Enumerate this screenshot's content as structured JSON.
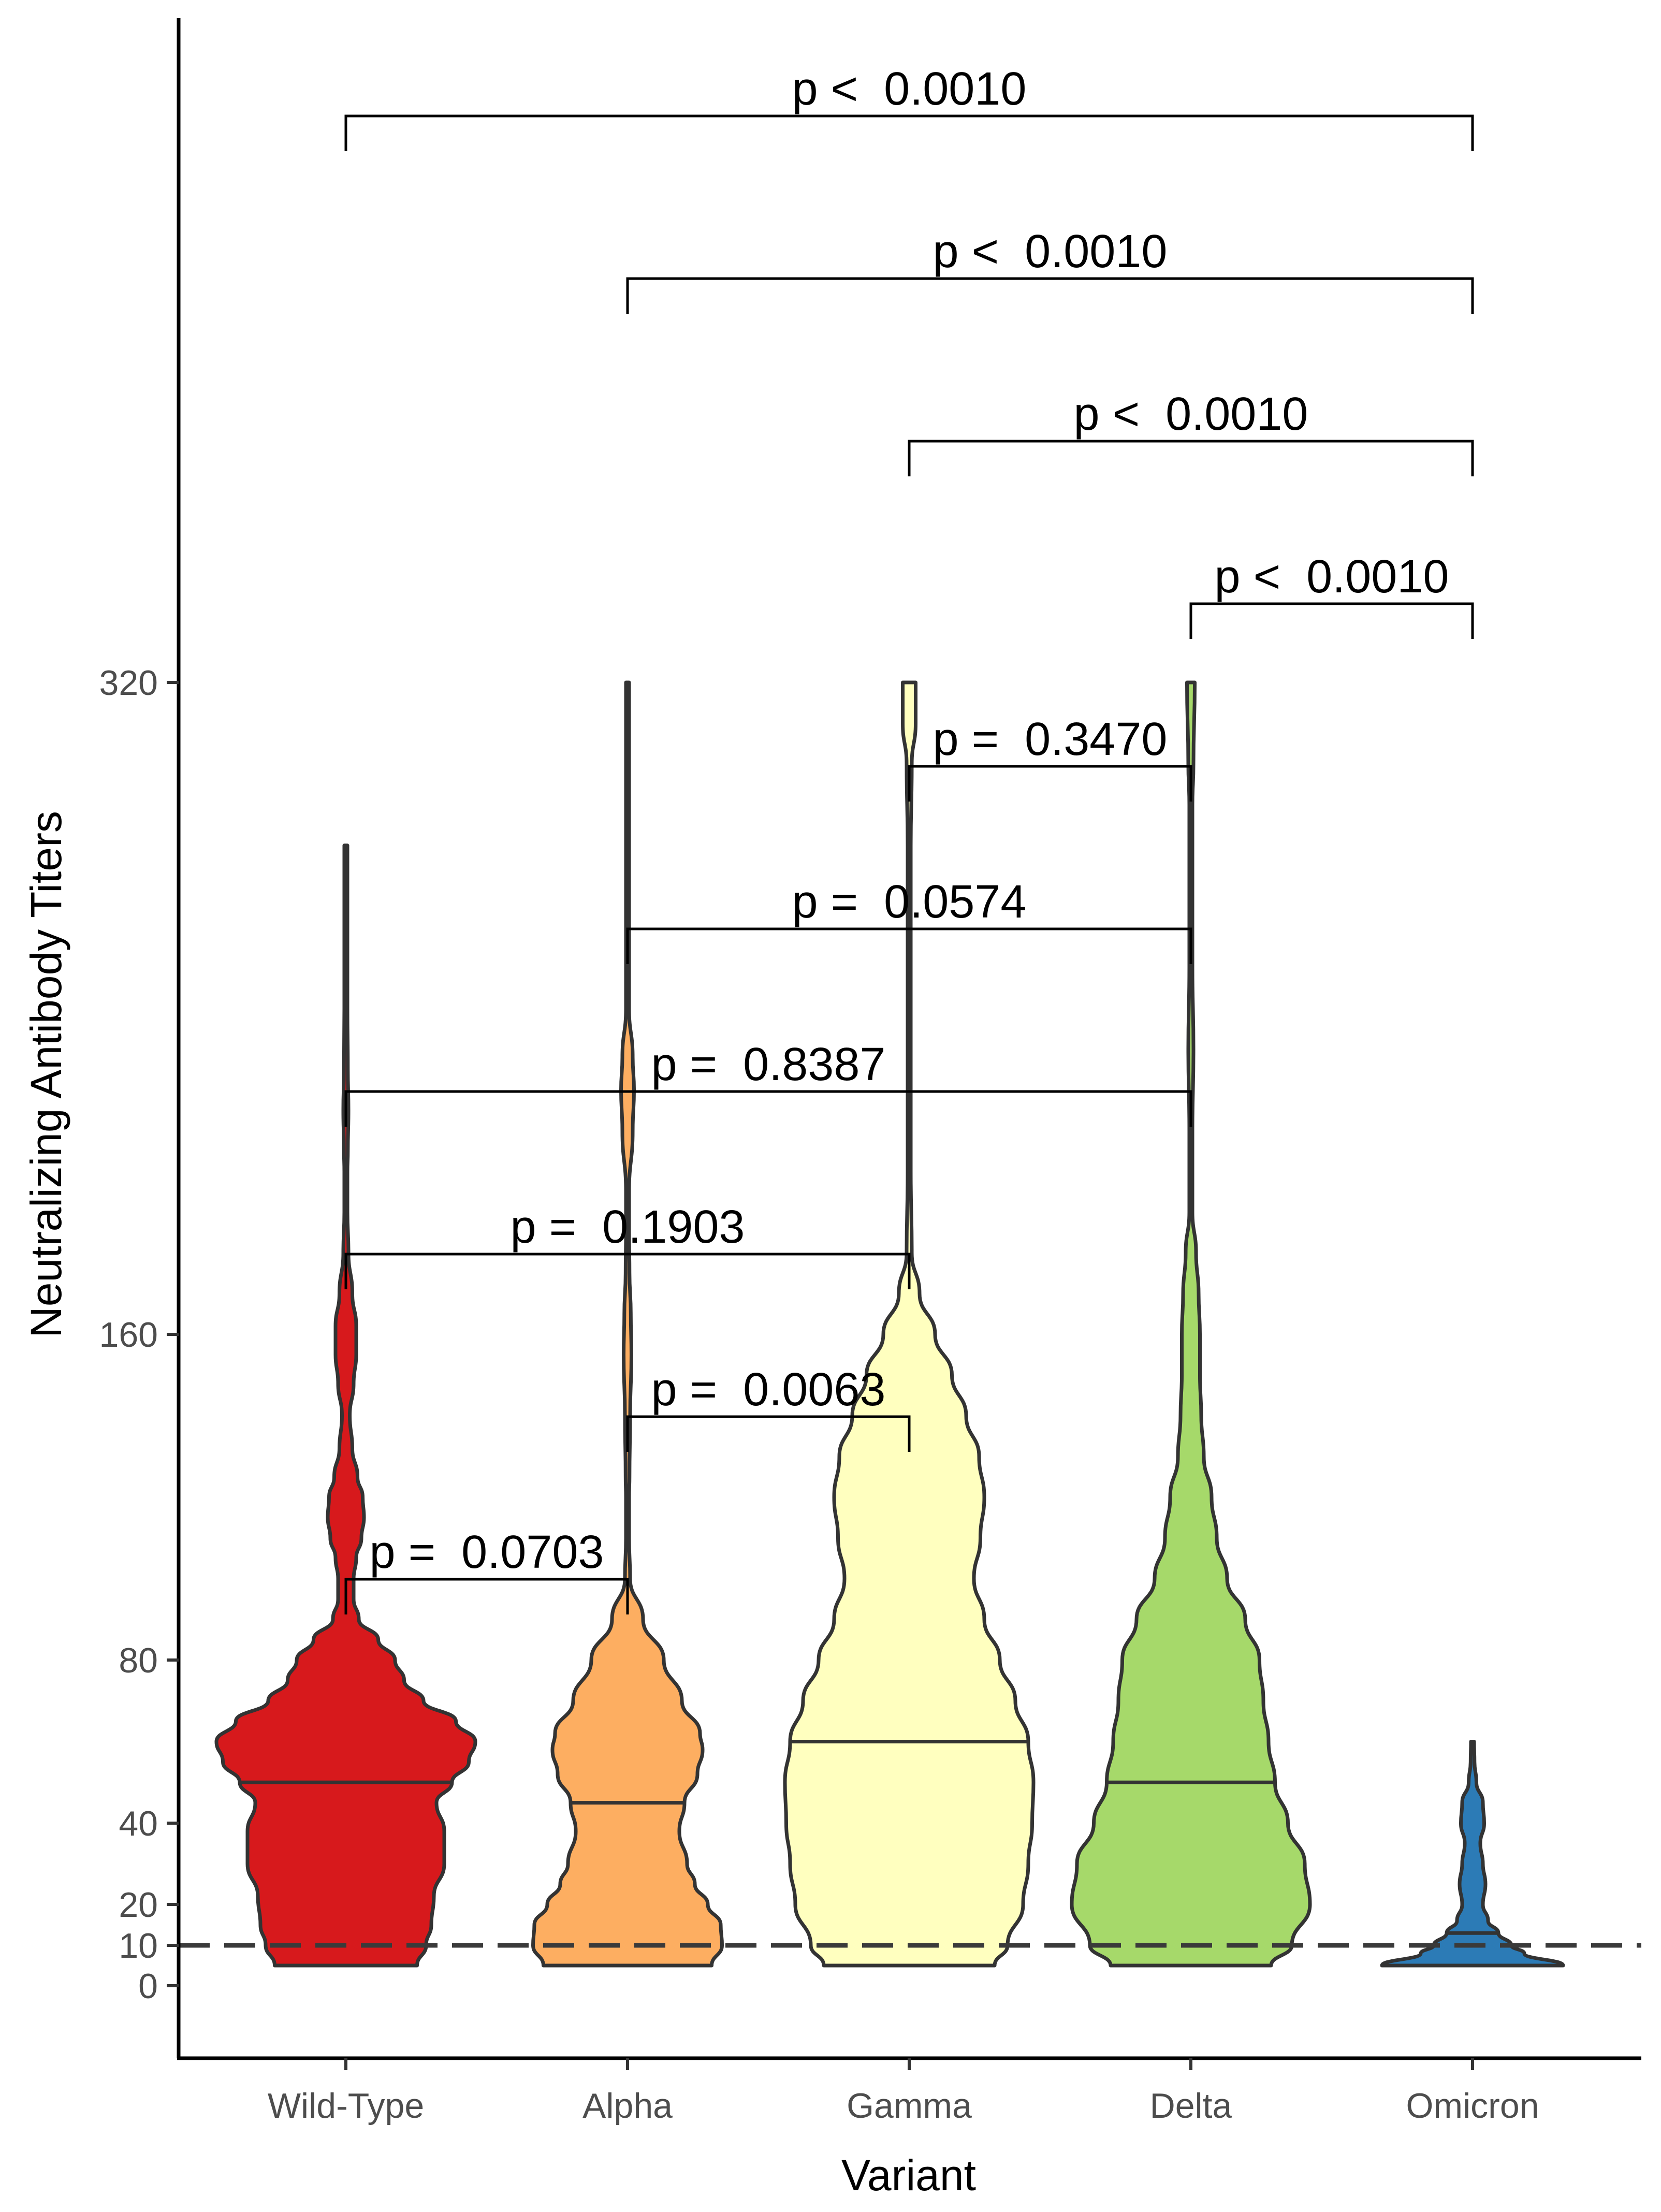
{
  "chart_data": {
    "type": "violin",
    "xlabel": "Variant",
    "ylabel": "Neutralizing Antibody Titers",
    "categories": [
      "Wild-Type",
      "Alpha",
      "Gamma",
      "Delta",
      "Omicron"
    ],
    "y_ticks": [
      0,
      10,
      20,
      40,
      80,
      160,
      320
    ],
    "y_tick_labels": [
      "0",
      "10",
      "20",
      "40",
      "80",
      "160",
      "320"
    ],
    "y_scale": "piecewise",
    "threshold_line": {
      "value": 10,
      "style": "dashed"
    },
    "colors": [
      "#d7191c",
      "#fdae61",
      "#ffffbf",
      "#a6d96a",
      "#2c7bb6"
    ],
    "series": [
      {
        "category": "Wild-Type",
        "median": 50,
        "min": 5,
        "max": 280,
        "profile": [
          [
            5,
            0.55
          ],
          [
            10,
            0.62
          ],
          [
            15,
            0.66
          ],
          [
            22,
            0.68
          ],
          [
            30,
            0.76
          ],
          [
            38,
            0.76
          ],
          [
            45,
            0.7
          ],
          [
            50,
            0.82
          ],
          [
            55,
            0.95
          ],
          [
            60,
            1.0
          ],
          [
            65,
            0.85
          ],
          [
            70,
            0.6
          ],
          [
            75,
            0.45
          ],
          [
            80,
            0.38
          ],
          [
            85,
            0.25
          ],
          [
            90,
            0.1
          ],
          [
            95,
            0.06
          ],
          [
            100,
            0.06
          ],
          [
            105,
            0.08
          ],
          [
            110,
            0.12
          ],
          [
            115,
            0.14
          ],
          [
            120,
            0.13
          ],
          [
            125,
            0.09
          ],
          [
            132,
            0.05
          ],
          [
            140,
            0.03
          ],
          [
            148,
            0.06
          ],
          [
            155,
            0.08
          ],
          [
            162,
            0.08
          ],
          [
            170,
            0.05
          ],
          [
            180,
            0.02
          ],
          [
            190,
            0.01
          ],
          [
            200,
            0.01
          ],
          [
            205,
            0.015
          ],
          [
            215,
            0.02
          ],
          [
            225,
            0.015
          ],
          [
            240,
            0.01
          ],
          [
            260,
            0.01
          ],
          [
            280,
            0.01
          ]
        ]
      },
      {
        "category": "Alpha",
        "median": 45,
        "min": 5,
        "max": 320,
        "profile": [
          [
            5,
            0.65
          ],
          [
            10,
            0.73
          ],
          [
            15,
            0.72
          ],
          [
            20,
            0.62
          ],
          [
            25,
            0.52
          ],
          [
            30,
            0.46
          ],
          [
            38,
            0.4
          ],
          [
            45,
            0.44
          ],
          [
            52,
            0.54
          ],
          [
            58,
            0.58
          ],
          [
            62,
            0.56
          ],
          [
            70,
            0.42
          ],
          [
            80,
            0.28
          ],
          [
            90,
            0.12
          ],
          [
            100,
            0.02
          ],
          [
            110,
            0.01
          ],
          [
            120,
            0.01
          ],
          [
            125,
            0.015
          ],
          [
            140,
            0.02
          ],
          [
            155,
            0.03
          ],
          [
            165,
            0.025
          ],
          [
            175,
            0.015
          ],
          [
            185,
            0.01
          ],
          [
            195,
            0.01
          ],
          [
            210,
            0.04
          ],
          [
            220,
            0.05
          ],
          [
            228,
            0.04
          ],
          [
            240,
            0.01
          ],
          [
            260,
            0.005
          ],
          [
            280,
            0.005
          ],
          [
            300,
            0.005
          ],
          [
            320,
            0.01
          ]
        ]
      },
      {
        "category": "Gamma",
        "median": 60,
        "min": 5,
        "max": 320,
        "profile": [
          [
            5,
            0.66
          ],
          [
            10,
            0.76
          ],
          [
            20,
            0.88
          ],
          [
            30,
            0.92
          ],
          [
            40,
            0.95
          ],
          [
            50,
            0.96
          ],
          [
            60,
            0.92
          ],
          [
            70,
            0.82
          ],
          [
            80,
            0.7
          ],
          [
            90,
            0.58
          ],
          [
            100,
            0.5
          ],
          [
            110,
            0.55
          ],
          [
            120,
            0.58
          ],
          [
            130,
            0.54
          ],
          [
            140,
            0.44
          ],
          [
            150,
            0.33
          ],
          [
            160,
            0.2
          ],
          [
            170,
            0.08
          ],
          [
            180,
            0.02
          ],
          [
            200,
            0.01
          ],
          [
            240,
            0.01
          ],
          [
            280,
            0.01
          ],
          [
            300,
            0.02
          ],
          [
            310,
            0.05
          ],
          [
            320,
            0.05
          ]
        ]
      },
      {
        "category": "Delta",
        "median": 50,
        "min": 5,
        "max": 320,
        "profile": [
          [
            5,
            0.62
          ],
          [
            10,
            0.78
          ],
          [
            20,
            0.92
          ],
          [
            30,
            0.88
          ],
          [
            40,
            0.75
          ],
          [
            50,
            0.65
          ],
          [
            60,
            0.6
          ],
          [
            70,
            0.56
          ],
          [
            80,
            0.53
          ],
          [
            90,
            0.42
          ],
          [
            100,
            0.28
          ],
          [
            110,
            0.2
          ],
          [
            120,
            0.16
          ],
          [
            130,
            0.1
          ],
          [
            140,
            0.08
          ],
          [
            150,
            0.07
          ],
          [
            160,
            0.07
          ],
          [
            170,
            0.06
          ],
          [
            180,
            0.04
          ],
          [
            190,
            0.01
          ],
          [
            210,
            0.01
          ],
          [
            230,
            0.02
          ],
          [
            250,
            0.01
          ],
          [
            270,
            0.01
          ],
          [
            290,
            0.01
          ],
          [
            300,
            0.02
          ],
          [
            320,
            0.03
          ]
        ]
      },
      {
        "category": "Omicron",
        "median": 13,
        "min": 5,
        "max": 60,
        "profile": [
          [
            5,
            0.7
          ],
          [
            8,
            0.4
          ],
          [
            10,
            0.3
          ],
          [
            13,
            0.2
          ],
          [
            16,
            0.12
          ],
          [
            20,
            0.08
          ],
          [
            25,
            0.1
          ],
          [
            30,
            0.08
          ],
          [
            35,
            0.06
          ],
          [
            40,
            0.09
          ],
          [
            45,
            0.08
          ],
          [
            50,
            0.03
          ],
          [
            55,
            0.015
          ],
          [
            60,
            0.01
          ]
        ]
      }
    ],
    "comparisons": [
      {
        "groups": [
          "Wild-Type",
          "Alpha"
        ],
        "label": "p =  0.0703"
      },
      {
        "groups": [
          "Alpha",
          "Gamma"
        ],
        "label": "p =  0.0063"
      },
      {
        "groups": [
          "Wild-Type",
          "Gamma"
        ],
        "label": "p =  0.1903"
      },
      {
        "groups": [
          "Wild-Type",
          "Delta"
        ],
        "label": "p =  0.8387"
      },
      {
        "groups": [
          "Alpha",
          "Delta"
        ],
        "label": "p =  0.0574"
      },
      {
        "groups": [
          "Gamma",
          "Delta"
        ],
        "label": "p =  0.3470"
      },
      {
        "groups": [
          "Delta",
          "Omicron"
        ],
        "label": "p <  0.0010"
      },
      {
        "groups": [
          "Gamma",
          "Omicron"
        ],
        "label": "p <  0.0010"
      },
      {
        "groups": [
          "Alpha",
          "Omicron"
        ],
        "label": "p <  0.0010"
      },
      {
        "groups": [
          "Wild-Type",
          "Omicron"
        ],
        "label": "p <  0.0010"
      }
    ]
  }
}
